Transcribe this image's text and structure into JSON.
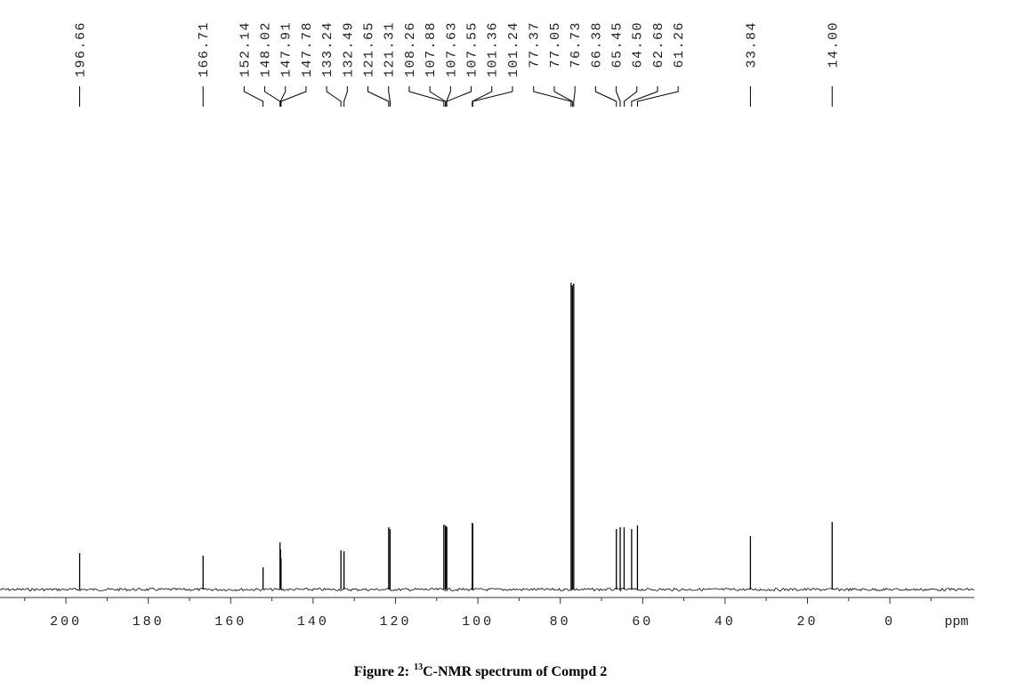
{
  "chart_data": {
    "type": "spectrum",
    "caption": [
      "Figure 2:",
      "13",
      "C-NMR spectrum of Compd 2"
    ],
    "xlabel": "ppm",
    "x": [
      196.66,
      166.71,
      152.14,
      148.02,
      147.91,
      147.78,
      133.24,
      132.49,
      121.65,
      121.31,
      108.26,
      107.88,
      107.63,
      107.55,
      101.36,
      101.24,
      77.37,
      77.05,
      76.73,
      66.38,
      65.45,
      64.5,
      62.68,
      61.26,
      33.84,
      14.0
    ],
    "value_labels": [
      "196.66",
      "166.71",
      "152.14",
      "148.02",
      "147.91",
      "147.78",
      "133.24",
      "132.49",
      "121.65",
      "121.31",
      "108.26",
      "107.88",
      "107.63",
      "107.55",
      "101.36",
      "101.24",
      "77.37",
      "77.05",
      "76.73",
      "66.38",
      "65.45",
      "64.50",
      "62.68",
      "61.26",
      "33.84",
      "14.00"
    ],
    "values": [
      41,
      38,
      25,
      53,
      45,
      35,
      44,
      43,
      70,
      68,
      73,
      72,
      71,
      70,
      75,
      74,
      345,
      342,
      344,
      68,
      70,
      70,
      68,
      72,
      60,
      76
    ],
    "color": "#000000",
    "xlim": [
      216,
      -20.5
    ],
    "xticks": [
      200,
      180,
      160,
      140,
      120,
      100,
      80,
      60,
      40,
      20,
      0
    ],
    "xminorticks": [
      210,
      190,
      170,
      150,
      130,
      110,
      90,
      70,
      50,
      30,
      10,
      -10
    ],
    "ylim": [
      0,
      345
    ]
  }
}
